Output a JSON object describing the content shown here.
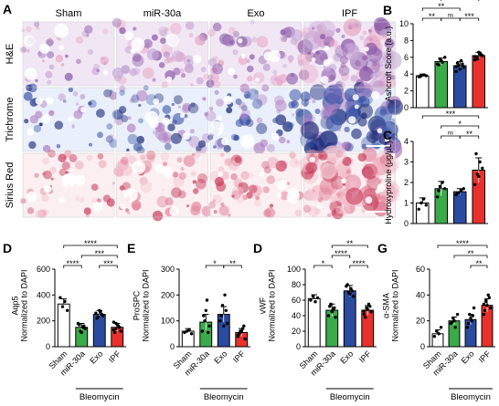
{
  "panel_labels": {
    "A": "A",
    "B": "B",
    "C": "C",
    "D1": "D",
    "E": "E",
    "D2": "D",
    "G": "G"
  },
  "histology": {
    "columns": [
      "Sham",
      "miR-30a",
      "Exo",
      "IPF"
    ],
    "rows": [
      "H&E",
      "Trichrome",
      "Sirius Red"
    ],
    "palette": {
      "he": [
        "#f1e7f4",
        "#c7a8d6",
        "#8a5aa8",
        "#e8a5c4"
      ],
      "tri": [
        "#eaf0fb",
        "#3c57a8",
        "#1b2a77",
        "#b17ec2"
      ],
      "sr": [
        "#fbeff2",
        "#e58aa0",
        "#c9405f",
        "#f4c7d1"
      ]
    }
  },
  "colors": {
    "sham": "#ffffff",
    "mir30a": "#3aab49",
    "exo": "#2b4ba0",
    "ipf": "#e8312d"
  },
  "bleomycin_label": "Bleomycin",
  "chart_data": [
    {
      "id": "B",
      "type": "bar",
      "categories": [
        "Sham",
        "miR-30a",
        "Exo",
        "IPF"
      ],
      "values": [
        3.8,
        5.5,
        5.0,
        6.2
      ],
      "errors": [
        0.2,
        0.4,
        0.5,
        0.4
      ],
      "points": [
        [
          3.7,
          3.8,
          3.9,
          3.8,
          3.7
        ],
        [
          5.2,
          5.8,
          5.4,
          6.0,
          5.1,
          5.6
        ],
        [
          4.3,
          5.0,
          5.6,
          4.8,
          5.3,
          4.6,
          5.2,
          4.9
        ],
        [
          5.7,
          6.0,
          6.5,
          6.2,
          5.9,
          6.6,
          6.3,
          6.1,
          5.8,
          6.4,
          6.2,
          6.0
        ]
      ],
      "ylabel": "Ashcroft Score (a.u.)",
      "ylim": [
        0,
        10
      ],
      "yticks": [
        0,
        2,
        4,
        6,
        8,
        10
      ],
      "significance": [
        {
          "from": 0,
          "to": 3,
          "label": "****",
          "level": 4
        },
        {
          "from": 1,
          "to": 3,
          "label": "*",
          "level": 3
        },
        {
          "from": 0,
          "to": 2,
          "label": "**",
          "level": 2
        },
        {
          "from": 0,
          "to": 1,
          "label": "**",
          "level": 1
        },
        {
          "from": 1,
          "to": 2,
          "label": "ns",
          "level": 1
        },
        {
          "from": 2,
          "to": 3,
          "label": "***",
          "level": 1
        }
      ]
    },
    {
      "id": "C",
      "type": "bar",
      "categories": [
        "Sham",
        "miR-30a",
        "Exo",
        "IPF"
      ],
      "values": [
        1.0,
        1.7,
        1.55,
        2.6
      ],
      "errors": [
        0.25,
        0.35,
        0.15,
        0.6
      ],
      "points": [
        [
          0.7,
          1.0,
          1.2,
          0.9
        ],
        [
          1.3,
          1.8,
          2.0,
          1.7,
          1.6
        ],
        [
          1.4,
          1.5,
          1.6,
          1.7,
          1.5
        ],
        [
          1.9,
          2.4,
          3.0,
          2.7,
          3.4,
          2.3
        ]
      ],
      "ylabel": "Hydroxyproline (μg/μL)",
      "ylim": [
        0,
        4
      ],
      "yticks": [
        0,
        1,
        2,
        3,
        4
      ],
      "significance": [
        {
          "from": 0,
          "to": 3,
          "label": "***",
          "level": 3
        },
        {
          "from": 1,
          "to": 3,
          "label": "*",
          "level": 2
        },
        {
          "from": 2,
          "to": 3,
          "label": "**",
          "level": 1
        },
        {
          "from": 1,
          "to": 2,
          "label": "ns",
          "level": 1
        }
      ]
    },
    {
      "id": "D1",
      "type": "bar",
      "categories": [
        "Sham",
        "miR-30a",
        "Exo",
        "IPF"
      ],
      "values": [
        330,
        150,
        250,
        150
      ],
      "errors": [
        40,
        30,
        30,
        30
      ],
      "points": [
        [
          380,
          310,
          350,
          280
        ],
        [
          180,
          120,
          150,
          140,
          170,
          110,
          160
        ],
        [
          260,
          230,
          270,
          240,
          220,
          280,
          250
        ],
        [
          190,
          140,
          160,
          120,
          110,
          170,
          150,
          130,
          180
        ]
      ],
      "ylabel": "Aqp5\nNormalized to DAPI",
      "ylim": [
        0,
        600
      ],
      "yticks": [
        0,
        200,
        400,
        600
      ],
      "significance": [
        {
          "from": 0,
          "to": 3,
          "label": "****",
          "level": 3
        },
        {
          "from": 1,
          "to": 3,
          "label": "***",
          "level": 2
        },
        {
          "from": 0,
          "to": 1,
          "label": "****",
          "level": 1
        },
        {
          "from": 2,
          "to": 3,
          "label": "***",
          "level": 1
        }
      ]
    },
    {
      "id": "E",
      "type": "bar",
      "categories": [
        "Sham",
        "miR-30a",
        "Exo",
        "IPF"
      ],
      "values": [
        60,
        95,
        125,
        55
      ],
      "errors": [
        10,
        30,
        30,
        15
      ],
      "points": [
        [
          55,
          60,
          65,
          50
        ],
        [
          60,
          100,
          180,
          80,
          120,
          140,
          55
        ],
        [
          100,
          160,
          200,
          90,
          120,
          80,
          140
        ],
        [
          40,
          60,
          70,
          30,
          50,
          60,
          80,
          45,
          55
        ]
      ],
      "ylabel": "ProSPC\nNormalized to DAPI",
      "ylim": [
        0,
        300
      ],
      "yticks": [
        0,
        100,
        200,
        300
      ],
      "significance": [
        {
          "from": 1,
          "to": 2,
          "label": "*",
          "level": 1
        },
        {
          "from": 2,
          "to": 3,
          "label": "**",
          "level": 1
        }
      ]
    },
    {
      "id": "D2",
      "type": "bar",
      "categories": [
        "Sham",
        "miR-30a",
        "Exo",
        "IPF"
      ],
      "values": [
        62,
        47,
        72,
        47
      ],
      "errors": [
        5,
        8,
        7,
        6
      ],
      "points": [
        [
          60,
          65,
          58,
          63
        ],
        [
          40,
          55,
          48,
          38,
          52,
          45,
          50
        ],
        [
          78,
          70,
          75,
          65,
          80,
          68,
          72
        ],
        [
          42,
          50,
          55,
          45,
          38,
          48,
          52,
          46
        ]
      ],
      "ylabel": "vWF\nNormalized to DAPI",
      "ylim": [
        0,
        100
      ],
      "yticks": [
        0,
        20,
        40,
        60,
        80,
        100
      ],
      "significance": [
        {
          "from": 1,
          "to": 3,
          "label": "**",
          "level": 3
        },
        {
          "from": 1,
          "to": 2,
          "label": "****",
          "level": 2
        },
        {
          "from": 0,
          "to": 1,
          "label": "*",
          "level": 1
        },
        {
          "from": 2,
          "to": 3,
          "label": "****",
          "level": 1
        }
      ]
    },
    {
      "id": "G",
      "type": "bar",
      "categories": [
        "Sham",
        "miR-30a",
        "Exo",
        "IPF"
      ],
      "values": [
        10,
        20,
        21,
        32
      ],
      "errors": [
        3,
        3,
        4,
        5
      ],
      "points": [
        [
          8,
          12,
          10,
          15
        ],
        [
          18,
          22,
          15,
          25,
          19,
          20
        ],
        [
          15,
          25,
          20,
          30,
          18,
          22,
          24
        ],
        [
          25,
          35,
          40,
          30,
          28,
          32,
          38,
          33,
          36
        ]
      ],
      "ylabel": "α-SMA\nNormalized to DAPI",
      "ylim": [
        0,
        60
      ],
      "yticks": [
        0,
        20,
        40,
        60
      ],
      "significance": [
        {
          "from": 0,
          "to": 3,
          "label": "****",
          "level": 3
        },
        {
          "from": 1,
          "to": 3,
          "label": "**",
          "level": 2
        },
        {
          "from": 2,
          "to": 3,
          "label": "**",
          "level": 1
        }
      ]
    }
  ]
}
